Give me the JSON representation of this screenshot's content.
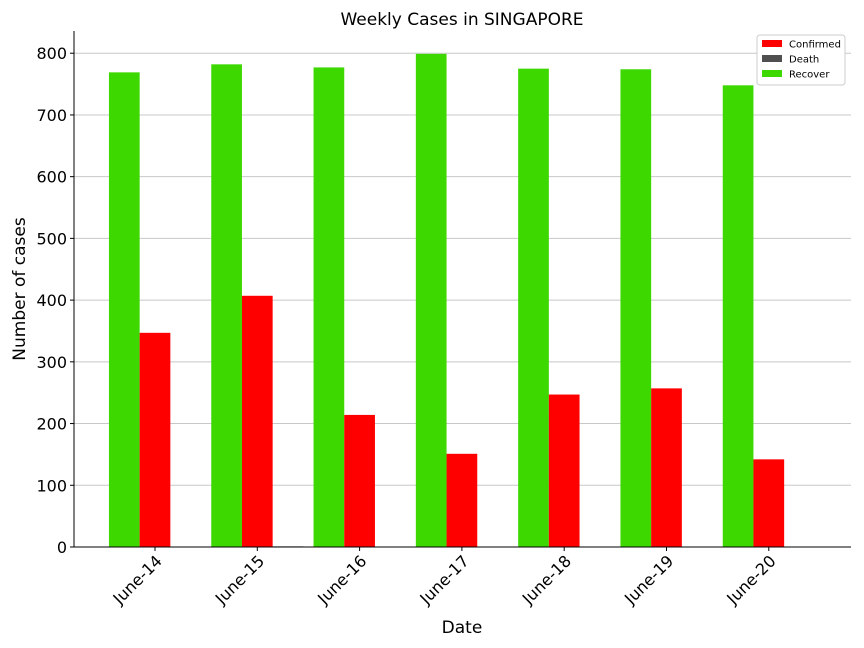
{
  "chart_data": {
    "type": "bar",
    "title": "Weekly Cases in SINGAPORE",
    "xlabel": "Date",
    "ylabel": "Number of cases",
    "categories": [
      "June-14",
      "June-15",
      "June-16",
      "June-17",
      "June-18",
      "June-19",
      "June-20"
    ],
    "ylim": [
      0,
      836
    ],
    "yticks": [
      0,
      100,
      200,
      300,
      400,
      500,
      600,
      700,
      800
    ],
    "grid": "horizontal",
    "legend_position": "top-right",
    "series": [
      {
        "name": "Confirmed",
        "color": "#ff0000",
        "values": [
          347,
          407,
          214,
          151,
          247,
          257,
          142
        ]
      },
      {
        "name": "Death",
        "color": "#4f4f4f",
        "values": [
          0,
          1,
          0,
          0,
          0,
          0,
          0
        ]
      },
      {
        "name": "Recover",
        "color": "#3dd800",
        "values": [
          769,
          782,
          777,
          799,
          775,
          774,
          748
        ]
      }
    ]
  }
}
